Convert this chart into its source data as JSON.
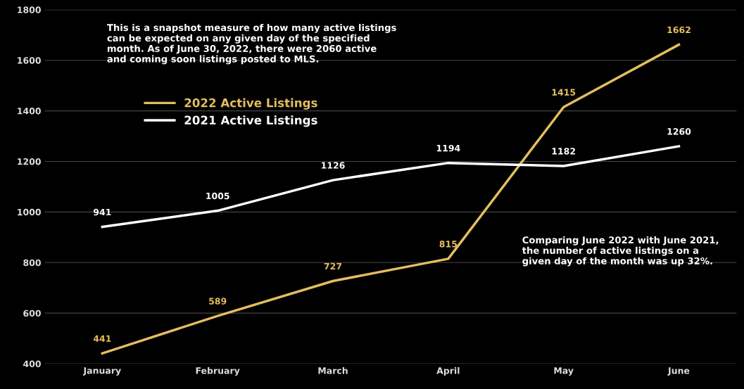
{
  "chart_data": {
    "type": "line",
    "categories": [
      "January",
      "February",
      "March",
      "April",
      "May",
      "June"
    ],
    "series": [
      {
        "name": "2022 Active Listings",
        "color": "#e3bd5f",
        "values": [
          441,
          589,
          727,
          815,
          1415,
          1662
        ]
      },
      {
        "name": "2021 Active Listings",
        "color": "#ffffff",
        "values": [
          941,
          1005,
          1126,
          1194,
          1182,
          1260
        ]
      }
    ],
    "ylim": [
      400,
      1800
    ],
    "yticks": [
      400,
      600,
      800,
      1000,
      1200,
      1400,
      1600,
      1800
    ],
    "grid": "y",
    "legend": "top left",
    "data_labels": true,
    "line_style": "solid",
    "annotations": [
      "This is a snapshot measure of how many active listings can be expected on any given day of the specified month. As of June 30, 2022, there were 2060 active and coming soon listings posted to MLS.",
      "Comparing June 2022 with June 2021, the number of active listings on a given day of the month was up 32%."
    ]
  }
}
